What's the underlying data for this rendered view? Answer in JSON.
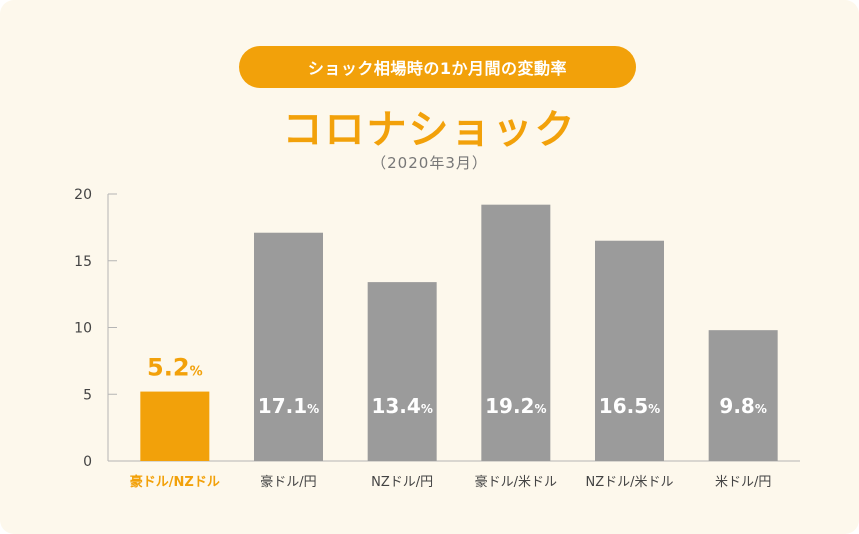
{
  "header": {
    "pill_label": "ショック相場時の1か月間の変動率",
    "title": "コロナショック",
    "subtitle": "（2020年3月）"
  },
  "colors": {
    "accent": "#f2a10a",
    "bar": "#9b9b9b",
    "background": "#fdf8ec"
  },
  "chart_data": {
    "type": "bar",
    "title": "コロナショック",
    "subtitle": "（2020年3月）",
    "categories": [
      "豪ドル/NZドル",
      "豪ドル/円",
      "NZドル/円",
      "豪ドル/米ドル",
      "NZドル/米ドル",
      "米ドル/円"
    ],
    "values": [
      5.2,
      17.1,
      13.4,
      19.2,
      16.5,
      9.8
    ],
    "value_labels": [
      "5.2",
      "17.1",
      "13.4",
      "19.2",
      "16.5",
      "9.8"
    ],
    "unit": "%",
    "highlight_index": 0,
    "ylim": [
      0,
      20
    ],
    "yticks": [
      0,
      5,
      10,
      15,
      20
    ],
    "xlabel": "",
    "ylabel": ""
  }
}
